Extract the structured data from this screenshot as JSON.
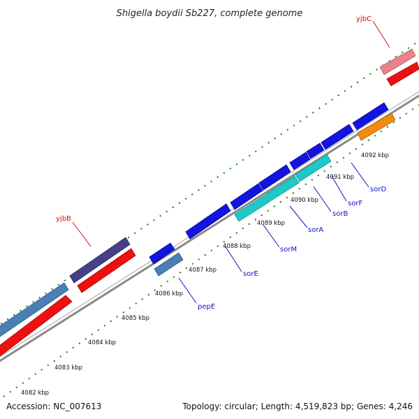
{
  "header": {
    "title": "Shigella boydii Sb227, complete genome"
  },
  "footer": {
    "accession": "Accession: NC_007613",
    "summary": "Topology: circular; Length: 4,519,823 bp; Genes: 4,246"
  },
  "colors": {
    "backbone": "#8a8a8a",
    "tick": "#1a7a1a",
    "label_blue": "#1010c8",
    "label_red": "#d01010"
  },
  "scale_labels": [
    "4082 kbp",
    "4083 kbp",
    "4084 kbp",
    "4085 kbp",
    "4086 kbp",
    "4087 kbp",
    "4088 kbp",
    "4089 kbp",
    "4090 kbp",
    "4091 kbp",
    "4092 kbp"
  ],
  "gene_labels": {
    "yjbC": "yjbC",
    "yjbB": "yjbB",
    "pepE": "pepE",
    "sorE": "sorE",
    "sorM": "sorM",
    "sorA": "sorA",
    "sorB": "sorB",
    "sorF": "sorF",
    "sorD": "sorD"
  },
  "features": [
    {
      "id": "outer-long-steelblue",
      "track": "outer-forward",
      "color": "#4a7fb5"
    },
    {
      "id": "yjbB-outer",
      "track": "outer-forward",
      "color": "#46408a",
      "gene": "yjbB"
    },
    {
      "id": "yjbC-outer",
      "track": "outer-forward",
      "color": "#e8838a",
      "gene": "yjbC"
    },
    {
      "id": "outer-long-red",
      "track": "outer-reverse",
      "color": "#ee1010"
    },
    {
      "id": "yjbB-red",
      "track": "outer-reverse",
      "color": "#ee1010"
    },
    {
      "id": "yjbC-red",
      "track": "outer-reverse",
      "color": "#ee1010"
    },
    {
      "id": "pepE-upper",
      "track": "inner-forward",
      "color": "#1414e0"
    },
    {
      "id": "pepE",
      "track": "inner-lower",
      "color": "#4a7fb5",
      "gene": "pepE"
    },
    {
      "id": "sorE",
      "track": "inner-forward",
      "color": "#1414e0",
      "gene": "sorE"
    },
    {
      "id": "sorM",
      "track": "inner-forward",
      "color": "#1414e0",
      "gene": "sorM"
    },
    {
      "id": "sorA",
      "track": "inner-forward",
      "color": "#1414e0",
      "gene": "sorA"
    },
    {
      "id": "sorB",
      "track": "inner-forward",
      "color": "#1414e0",
      "gene": "sorB"
    },
    {
      "id": "sorF",
      "track": "inner-forward",
      "color": "#1414e0",
      "gene": "sorF"
    },
    {
      "id": "sorD",
      "track": "inner-forward",
      "color": "#1414e0",
      "gene": "sorD"
    },
    {
      "id": "cyan-1",
      "track": "inner-lower",
      "color": "#1ec8c8"
    },
    {
      "id": "cyan-2",
      "track": "inner-lower",
      "color": "#1ec8c8"
    },
    {
      "id": "cyan-3",
      "track": "inner-lower",
      "color": "#1ec8c8"
    },
    {
      "id": "orange-1",
      "track": "inner-lower",
      "color": "#f08a10"
    }
  ]
}
